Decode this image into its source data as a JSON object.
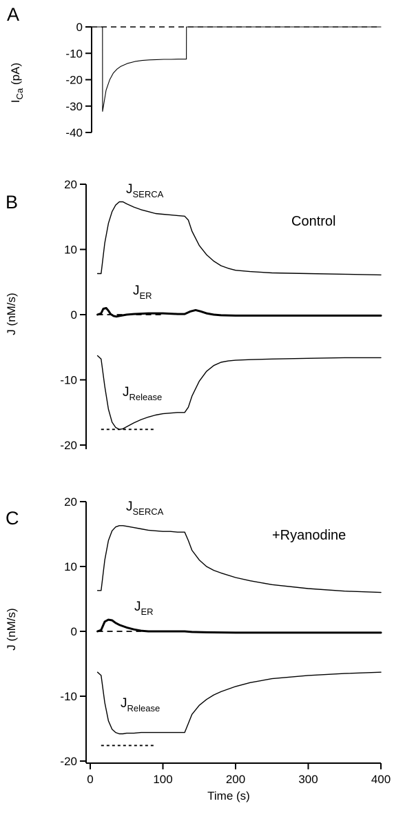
{
  "panels": [
    {
      "letter": "A",
      "ylabel": "I",
      "ylabel_sub": "Ca",
      "ylabel_unit": " (pA)",
      "condition": "",
      "traces": [
        {
          "base": "",
          "sub": "",
          "label": ""
        }
      ]
    },
    {
      "letter": "B",
      "ylabel": "J (nM/s)",
      "condition": "Control",
      "traces": [
        {
          "base": "J",
          "sub": "SERCA",
          "label": "JSERCA"
        },
        {
          "base": "J",
          "sub": "ER",
          "label": "JER"
        },
        {
          "base": "J",
          "sub": "Release",
          "label": "JRelease"
        }
      ]
    },
    {
      "letter": "C",
      "ylabel": "J (nM/s)",
      "condition": "+Ryanodine",
      "traces": [
        {
          "base": "J",
          "sub": "SERCA",
          "label": "JSERCA"
        },
        {
          "base": "J",
          "sub": "ER",
          "label": "JER"
        },
        {
          "base": "J",
          "sub": "Release",
          "label": "JRelease"
        }
      ]
    }
  ],
  "chart_data": [
    {
      "type": "line",
      "panel": "A",
      "ylabel": "ICa (pA)",
      "xlim": [
        0,
        400
      ],
      "ylim": [
        -40,
        0
      ],
      "yticks": [
        0,
        -10,
        -20,
        -30,
        -40
      ],
      "yticklabels": [
        "0",
        "-10",
        "-20",
        "-30",
        "-40"
      ],
      "zero_reference": {
        "y": 0,
        "x": [
          0,
          400
        ],
        "style": "dashed"
      },
      "series": [
        {
          "x": [
            0,
            15,
            15.1,
            20,
            25,
            30,
            35,
            40,
            50,
            60,
            70,
            80,
            90,
            100,
            110,
            120,
            130,
            131,
            131.1,
            150,
            200,
            250,
            300,
            350,
            400
          ],
          "y": [
            0,
            0,
            -32,
            -24,
            -20,
            -17.5,
            -16,
            -15,
            -13.8,
            -13.1,
            -12.7,
            -12.5,
            -12.4,
            -12.3,
            -12.3,
            -12.2,
            -12.2,
            -12.2,
            0,
            0,
            0,
            0,
            0,
            0,
            0
          ]
        }
      ]
    },
    {
      "type": "line",
      "panel": "B",
      "title": "Control",
      "ylabel": "J (nM/s)",
      "xlim": [
        0,
        400
      ],
      "ylim": [
        -20,
        20
      ],
      "yticks": [
        20,
        10,
        0,
        -10,
        -20
      ],
      "yticklabels": [
        "20",
        "10",
        "0",
        "-10",
        "-20"
      ],
      "reference_lines": [
        {
          "y": 0,
          "x": [
            10,
            100
          ],
          "style": "dashed"
        },
        {
          "y": -17.6,
          "x": [
            15,
            90
          ],
          "style": "dotted"
        }
      ],
      "series": [
        {
          "name": "JSERCA",
          "x": [
            10,
            15,
            20,
            25,
            30,
            35,
            40,
            45,
            50,
            60,
            70,
            80,
            90,
            100,
            110,
            120,
            130,
            135,
            140,
            150,
            160,
            170,
            180,
            190,
            200,
            220,
            250,
            300,
            350,
            400
          ],
          "y": [
            6.3,
            6.3,
            11,
            14,
            15.8,
            16.8,
            17.3,
            17.3,
            17,
            16.5,
            16.1,
            15.8,
            15.5,
            15.4,
            15.3,
            15.2,
            15.1,
            14.5,
            12.8,
            10.6,
            9.2,
            8.2,
            7.5,
            7.1,
            6.8,
            6.6,
            6.4,
            6.3,
            6.2,
            6.1
          ]
        },
        {
          "name": "JER",
          "x": [
            10,
            15,
            18,
            22,
            25,
            28,
            32,
            36,
            40,
            50,
            60,
            80,
            100,
            120,
            130,
            138,
            145,
            152,
            160,
            170,
            180,
            200,
            250,
            300,
            350,
            400
          ],
          "y": [
            0,
            0.2,
            0.9,
            1,
            0.6,
            0.1,
            -0.2,
            -0.3,
            -0.2,
            0,
            0.1,
            0.2,
            0.2,
            0.1,
            0.1,
            0.5,
            0.7,
            0.5,
            0.2,
            0,
            -0.1,
            -0.15,
            -0.15,
            -0.15,
            -0.15,
            -0.15
          ]
        },
        {
          "name": "JRelease",
          "x": [
            10,
            15,
            20,
            25,
            30,
            35,
            40,
            45,
            50,
            60,
            70,
            80,
            90,
            100,
            110,
            120,
            130,
            135,
            140,
            150,
            160,
            170,
            180,
            190,
            200,
            220,
            250,
            300,
            350,
            400
          ],
          "y": [
            -6.3,
            -6.8,
            -11,
            -14.5,
            -16.5,
            -17.3,
            -17.6,
            -17.5,
            -17.2,
            -16.6,
            -16.1,
            -15.7,
            -15.4,
            -15.2,
            -15.1,
            -15,
            -15,
            -14.2,
            -12.5,
            -10.2,
            -8.7,
            -7.8,
            -7.3,
            -7.1,
            -7,
            -6.9,
            -6.8,
            -6.7,
            -6.6,
            -6.6
          ]
        }
      ]
    },
    {
      "type": "line",
      "panel": "C",
      "title": "+Ryanodine",
      "ylabel": "J (nM/s)",
      "xlabel": "Time (s)",
      "xlim": [
        0,
        400
      ],
      "ylim": [
        -20,
        20
      ],
      "xticks": [
        0,
        100,
        200,
        300,
        400
      ],
      "xticklabels": [
        "0",
        "100",
        "200",
        "300",
        "400"
      ],
      "yticks": [
        20,
        10,
        0,
        -10,
        -20
      ],
      "yticklabels": [
        "20",
        "10",
        "0",
        "-10",
        "-20"
      ],
      "reference_lines": [
        {
          "y": 0,
          "x": [
            10,
            70
          ],
          "style": "dashed"
        },
        {
          "y": -17.6,
          "x": [
            15,
            90
          ],
          "style": "dotted"
        }
      ],
      "series": [
        {
          "name": "JSERCA",
          "x": [
            10,
            15,
            20,
            25,
            30,
            35,
            40,
            45,
            50,
            60,
            70,
            80,
            90,
            100,
            110,
            120,
            130,
            135,
            140,
            150,
            160,
            170,
            180,
            200,
            220,
            250,
            300,
            350,
            400
          ],
          "y": [
            6.3,
            6.3,
            11,
            14,
            15.5,
            16.1,
            16.3,
            16.3,
            16.2,
            16,
            15.8,
            15.6,
            15.5,
            15.4,
            15.4,
            15.3,
            15.3,
            14,
            12.5,
            11,
            10,
            9.4,
            9,
            8.3,
            7.8,
            7.2,
            6.6,
            6.2,
            6
          ]
        },
        {
          "name": "JER",
          "x": [
            10,
            15,
            20,
            25,
            30,
            35,
            40,
            50,
            60,
            70,
            80,
            100,
            130,
            140,
            160,
            200,
            250,
            300,
            350,
            400
          ],
          "y": [
            0,
            0.2,
            1.5,
            1.8,
            1.7,
            1.3,
            1,
            0.6,
            0.3,
            0.1,
            0,
            0,
            0,
            -0.1,
            -0.15,
            -0.2,
            -0.2,
            -0.2,
            -0.2,
            -0.2
          ]
        },
        {
          "name": "JRelease",
          "x": [
            10,
            15,
            20,
            25,
            30,
            35,
            40,
            45,
            50,
            60,
            70,
            80,
            90,
            100,
            110,
            120,
            130,
            135,
            140,
            150,
            160,
            170,
            180,
            200,
            220,
            250,
            300,
            350,
            400
          ],
          "y": [
            -6.3,
            -6.8,
            -11,
            -13.8,
            -15.1,
            -15.6,
            -15.8,
            -15.8,
            -15.7,
            -15.7,
            -15.6,
            -15.6,
            -15.6,
            -15.6,
            -15.6,
            -15.6,
            -15.6,
            -14.2,
            -12.8,
            -11.4,
            -10.5,
            -9.8,
            -9.3,
            -8.5,
            -7.9,
            -7.3,
            -6.8,
            -6.5,
            -6.3
          ]
        }
      ]
    }
  ]
}
